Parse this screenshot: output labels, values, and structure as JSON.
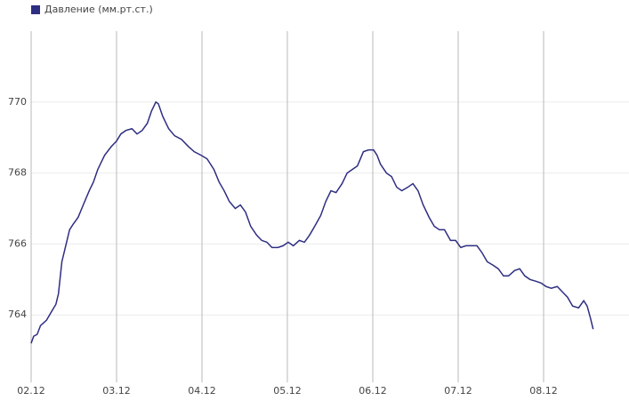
{
  "chart_data": {
    "type": "line",
    "series": [
      {
        "name": "Давление (мм.рт.ст.)",
        "color": "#2e2e82",
        "x": [
          0,
          0.03,
          0.07,
          0.11,
          0.18,
          0.24,
          0.29,
          0.32,
          0.36,
          0.41,
          0.45,
          0.49,
          0.55,
          0.61,
          0.68,
          0.73,
          0.78,
          0.86,
          0.94,
          1.0,
          1.05,
          1.11,
          1.18,
          1.24,
          1.3,
          1.36,
          1.41,
          1.46,
          1.49,
          1.54,
          1.61,
          1.68,
          1.76,
          1.84,
          1.91,
          1.99,
          2.06,
          2.14,
          2.2,
          2.26,
          2.32,
          2.39,
          2.45,
          2.51,
          2.57,
          2.64,
          2.7,
          2.76,
          2.82,
          2.89,
          2.95,
          3.01,
          3.07,
          3.14,
          3.2,
          3.26,
          3.32,
          3.39,
          3.45,
          3.51,
          3.57,
          3.64,
          3.7,
          3.76,
          3.82,
          3.89,
          3.95,
          4.01,
          4.05,
          4.09,
          4.16,
          4.22,
          4.28,
          4.34,
          4.41,
          4.47,
          4.53,
          4.59,
          4.66,
          4.72,
          4.78,
          4.84,
          4.91,
          4.97,
          5.03,
          5.09,
          5.16,
          5.22,
          5.28,
          5.34,
          5.41,
          5.47,
          5.53,
          5.59,
          5.66,
          5.72,
          5.78,
          5.84,
          5.91,
          5.97,
          6.03,
          6.09,
          6.16,
          6.22,
          6.28,
          6.34,
          6.41,
          6.47,
          6.51,
          6.55,
          6.58
        ],
        "values": [
          763.2,
          763.4,
          763.45,
          763.7,
          763.85,
          764.1,
          764.3,
          764.6,
          765.5,
          766.0,
          766.4,
          766.55,
          766.75,
          767.1,
          767.5,
          767.75,
          768.1,
          768.5,
          768.75,
          768.9,
          769.1,
          769.2,
          769.25,
          769.1,
          769.2,
          769.4,
          769.75,
          770.0,
          769.95,
          769.6,
          769.25,
          769.05,
          768.95,
          768.75,
          768.6,
          768.5,
          768.4,
          768.1,
          767.75,
          767.5,
          767.2,
          767.0,
          767.1,
          766.9,
          766.5,
          766.25,
          766.1,
          766.05,
          765.9,
          765.9,
          765.95,
          766.05,
          765.95,
          766.1,
          766.05,
          766.25,
          766.5,
          766.8,
          767.2,
          767.5,
          767.45,
          767.7,
          768.0,
          768.1,
          768.2,
          768.6,
          768.65,
          768.65,
          768.5,
          768.25,
          768.0,
          767.9,
          767.6,
          767.5,
          767.6,
          767.7,
          767.5,
          767.1,
          766.75,
          766.5,
          766.4,
          766.4,
          766.1,
          766.1,
          765.9,
          765.95,
          765.95,
          765.95,
          765.75,
          765.5,
          765.4,
          765.3,
          765.1,
          765.1,
          765.25,
          765.3,
          765.1,
          765.0,
          764.95,
          764.9,
          764.8,
          764.75,
          764.8,
          764.65,
          764.5,
          764.25,
          764.2,
          764.4,
          764.25,
          763.9,
          763.6
        ]
      }
    ],
    "xlim": [
      0,
      7
    ],
    "xticks": [
      {
        "value": 0,
        "label": "02.12"
      },
      {
        "value": 1,
        "label": "03.12"
      },
      {
        "value": 2,
        "label": "04.12"
      },
      {
        "value": 3,
        "label": "05.12"
      },
      {
        "value": 4,
        "label": "06.12"
      },
      {
        "value": 5,
        "label": "07.12"
      },
      {
        "value": 6,
        "label": "08.12"
      }
    ],
    "ylim": [
      762.1,
      772
    ],
    "yticks": [
      764,
      766,
      768,
      770
    ],
    "grid": true,
    "legend": "top-left"
  }
}
